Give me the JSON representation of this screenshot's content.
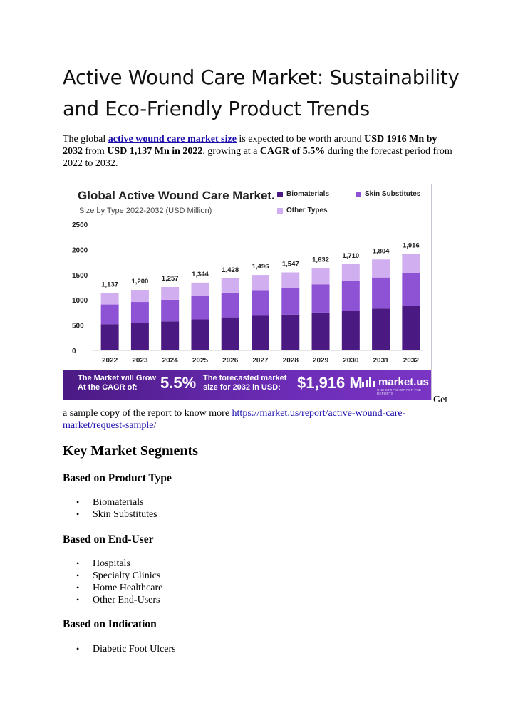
{
  "title": "Active Wound Care Market: Sustainability and Eco-Friendly Product Trends",
  "intro": {
    "p1": "The global ",
    "link": "active wound care market size",
    "p2": " is expected to be worth around ",
    "b1": "USD 1916 Mn by 2032",
    "p3": " from ",
    "b2": "USD 1,137 Mn in 2022",
    "p4": ", growing at a ",
    "b3": "CAGR of 5.5%",
    "p5": " during the forecast period from 2022 to 2032."
  },
  "figure": {
    "title": "Global Active Wound Care Market.",
    "subtitle": "Size by Type 2022-2032 (USD Million)",
    "banner": {
      "label1": "The Market will Grow At the CAGR of:",
      "cagr": "5.5%",
      "label2": "The forecasted market size for 2032 in USD:",
      "value": "$1,916 M",
      "logo": "market.us",
      "tagline": "ONE STOP SHOP FOR THE REPORTS"
    }
  },
  "chart_data": {
    "type": "bar",
    "stacked": true,
    "title": "Global Active Wound Care Market.",
    "subtitle": "Size by Type 2022-2032 (USD Million)",
    "categories": [
      "2022",
      "2023",
      "2024",
      "2025",
      "2026",
      "2027",
      "2028",
      "2029",
      "2030",
      "2031",
      "2032"
    ],
    "totals": [
      1137,
      1200,
      1257,
      1344,
      1428,
      1496,
      1547,
      1632,
      1710,
      1804,
      1916
    ],
    "series": [
      {
        "name": "Biomaterials",
        "color": "#4a1a82",
        "values": [
          520,
          550,
          575,
          615,
          655,
          685,
          710,
          750,
          785,
          830,
          880
        ]
      },
      {
        "name": "Skin Substitutes",
        "color": "#8e52d4",
        "values": [
          390,
          410,
          430,
          460,
          490,
          510,
          530,
          560,
          585,
          615,
          655
        ]
      },
      {
        "name": "Other Types",
        "color": "#d0aef0",
        "values": [
          227,
          240,
          252,
          269,
          283,
          301,
          307,
          322,
          340,
          359,
          381
        ]
      }
    ],
    "yticks": [
      0,
      500,
      1000,
      1500,
      2000,
      2500
    ],
    "ylim": [
      0,
      2500
    ],
    "legend": "top-right"
  },
  "sample": {
    "get": "Get",
    "text": "a sample copy of the report to know more ",
    "link": "https://market.us/report/active-wound-care-market/request-sample/"
  },
  "segments": {
    "heading": "Key Market Segments",
    "groups": [
      {
        "title": "Based on Product Type",
        "items": [
          "Biomaterials",
          "Skin Substitutes"
        ]
      },
      {
        "title": "Based on End-User",
        "items": [
          "Hospitals",
          "Specialty Clinics",
          "Home Healthcare",
          "Other End-Users"
        ]
      },
      {
        "title": "Based on Indication",
        "items": [
          "Diabetic Foot Ulcers"
        ]
      }
    ]
  }
}
